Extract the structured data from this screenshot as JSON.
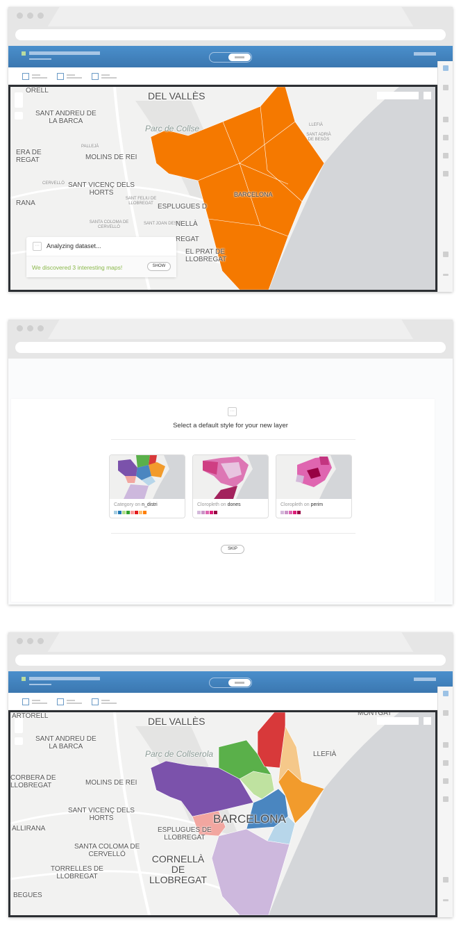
{
  "colors": {
    "accent": "#3b7dbf",
    "orange": "#f57900",
    "success": "#8ab84a",
    "map_border": "#2c2f33"
  },
  "screen1": {
    "map_labels": {
      "del_valles": "DEL VALLÈS",
      "sant_andreu": "SANT ANDREU DE",
      "la_barca": "LA BARCA",
      "parc": "Parc de Collse",
      "molins": "MOLINS DE REI",
      "corbera1": "ERA DE",
      "corbera2": "REGAT",
      "sant_vicenc": "SANT VICENÇ DELS",
      "horts": "HORTS",
      "rana": "RANA",
      "esplugues": "ESPLUGUES D",
      "barcelona": "BARCELONA",
      "orell": "ORELL",
      "pallejà": "PALLEJÀ",
      "cervello": "CERVELLÓ",
      "sant_feliu": "SANT FELIU DE LLOBREGAT",
      "santa_coloma": "SANTA COLOMA DE CERVELLÓ",
      "sant_joan": "SANT JOAN DESPÍ",
      "llefia": "LLEFIÀ",
      "badalona": "SANT ADRIÀ DE BESÒS",
      "el_prat": "EL PRAT DE",
      "el_prat2": "LLOBREGAT",
      "cornella1": "NELLÀ",
      "cornella2": "REGAT"
    },
    "notification": {
      "title": "Analyzing dataset...",
      "message": "We discovered 3 interesting maps!",
      "show_label": "SHOW",
      "icon": "ellipsis-icon"
    }
  },
  "screen2": {
    "title": "Select a default style for your new layer",
    "cards": [
      {
        "kind": "Category on",
        "column": "n_distri",
        "swatches": [
          "#a6cee3",
          "#1f78b4",
          "#b2df8a",
          "#33a02c",
          "#fb9a99",
          "#e31a1c",
          "#fdbf6f",
          "#ff7f00"
        ]
      },
      {
        "kind": "Cloropleth on",
        "column": "dones",
        "swatches": [
          "#d4b9da",
          "#c994c7",
          "#df65b0",
          "#dd1c77",
          "#980043"
        ]
      },
      {
        "kind": "Cloropleth on",
        "column": "perim",
        "swatches": [
          "#d4b9da",
          "#c994c7",
          "#df65b0",
          "#dd1c77",
          "#980043"
        ]
      }
    ],
    "skip_label": "SKIP"
  },
  "screen3": {
    "map_labels": {
      "del_valles": "DEL VALLÈS",
      "sant_andreu": "SANT ANDREU DE",
      "la_barca": "LA BARCA",
      "parc": "Parc de Collserola",
      "molins": "MOLINS DE REI",
      "corbera1": "CORBERA DE",
      "corbera2": "LLOBREGAT",
      "sant_vicenc": "SANT VICENÇ DELS",
      "horts": "HORTS",
      "allirana": "ALLIRANA",
      "esplugues1": "ESPLUGUES DE",
      "esplugues2": "LLOBREGAT",
      "barcelona": "BARCELONA",
      "santa_coloma1": "SANTA COLOMA DE",
      "santa_coloma2": "CERVELLÓ",
      "torrelles1": "TORRELLES DE",
      "torrelles2": "LLOBREGAT",
      "cornella1": "CORNELLÀ",
      "cornella2": "DE",
      "cornella3": "LLOBREGAT",
      "begues": "BEGUES",
      "llefia": "LLEFIÀ",
      "montgat": "MONTGAT",
      "martorell": "ARTORELL"
    },
    "district_colors": [
      "#7b52ab",
      "#5ab04a",
      "#d8393a",
      "#f5c88a",
      "#f29b2c",
      "#bfe2a0",
      "#4a86c0",
      "#b7d6ea",
      "#f2a6a0",
      "#cdb8dd"
    ]
  }
}
